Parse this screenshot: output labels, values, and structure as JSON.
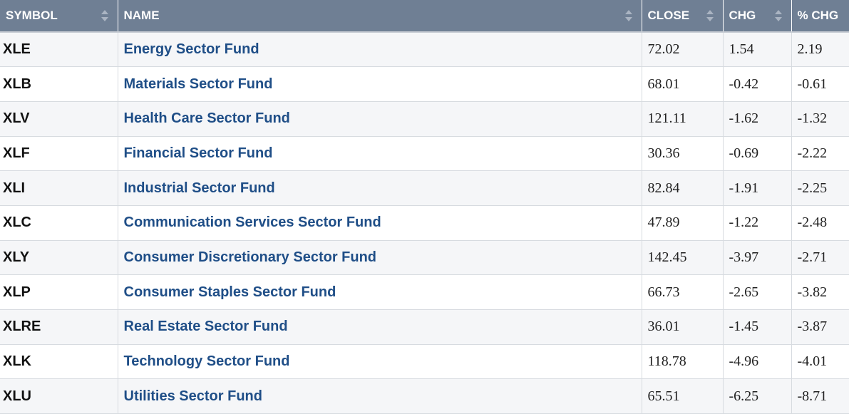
{
  "columns": [
    {
      "label": "SYMBOL",
      "sort_icon": "sort-arrows-icon"
    },
    {
      "label": "NAME",
      "sort_icon": "sort-arrows-icon"
    },
    {
      "label": "CLOSE",
      "sort_icon": "sort-arrows-icon"
    },
    {
      "label": "CHG",
      "sort_icon": "sort-arrows-icon"
    },
    {
      "label": "% CHG",
      "sort_icon": ""
    }
  ],
  "rows": [
    {
      "symbol": "XLE",
      "name": "Energy Sector Fund",
      "close": "72.02",
      "chg": "1.54",
      "pct_chg": "2.19"
    },
    {
      "symbol": "XLB",
      "name": "Materials Sector Fund",
      "close": "68.01",
      "chg": "-0.42",
      "pct_chg": "-0.61"
    },
    {
      "symbol": "XLV",
      "name": "Health Care Sector Fund",
      "close": "121.11",
      "chg": "-1.62",
      "pct_chg": "-1.32"
    },
    {
      "symbol": "XLF",
      "name": "Financial Sector Fund",
      "close": "30.36",
      "chg": "-0.69",
      "pct_chg": "-2.22"
    },
    {
      "symbol": "XLI",
      "name": "Industrial Sector Fund",
      "close": "82.84",
      "chg": "-1.91",
      "pct_chg": "-2.25"
    },
    {
      "symbol": "XLC",
      "name": "Communication Services Sector Fund",
      "close": "47.89",
      "chg": "-1.22",
      "pct_chg": "-2.48"
    },
    {
      "symbol": "XLY",
      "name": "Consumer Discretionary Sector Fund",
      "close": "142.45",
      "chg": "-3.97",
      "pct_chg": "-2.71"
    },
    {
      "symbol": "XLP",
      "name": "Consumer Staples Sector Fund",
      "close": "66.73",
      "chg": "-2.65",
      "pct_chg": "-3.82"
    },
    {
      "symbol": "XLRE",
      "name": "Real Estate Sector Fund",
      "close": "36.01",
      "chg": "-1.45",
      "pct_chg": "-3.87"
    },
    {
      "symbol": "XLK",
      "name": "Technology Sector Fund",
      "close": "118.78",
      "chg": "-4.96",
      "pct_chg": "-4.01"
    },
    {
      "symbol": "XLU",
      "name": "Utilities Sector Fund",
      "close": "65.51",
      "chg": "-6.25",
      "pct_chg": "-8.71"
    }
  ],
  "colors": {
    "header_bg": "#6f7f94",
    "header_text": "#ffffff",
    "link": "#1f4e87",
    "row_alt": "#f5f6f8"
  }
}
